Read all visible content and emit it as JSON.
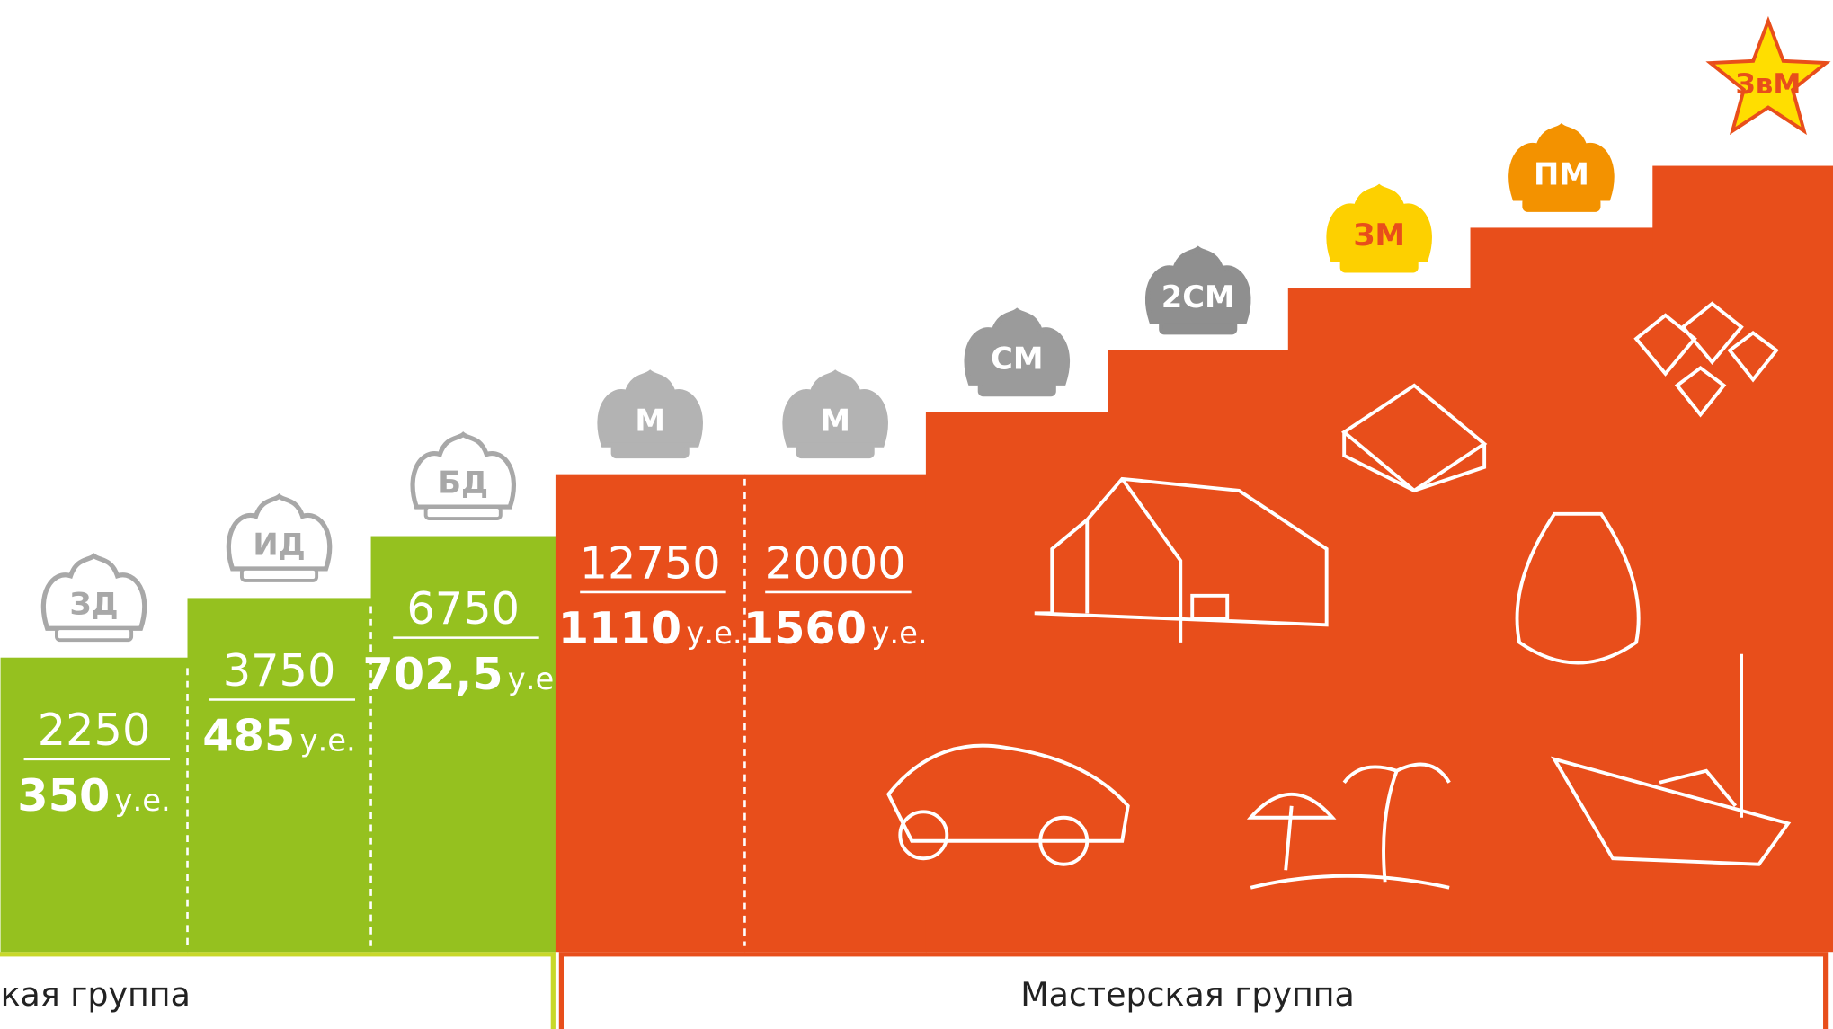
{
  "levels": [
    {
      "badge": "ЗД",
      "points": "2250",
      "amount": "350",
      "unit": "у.е."
    },
    {
      "badge": "ИД",
      "points": "3750",
      "amount": "485",
      "unit": "у.е."
    },
    {
      "badge": "БД",
      "points": "6750",
      "amount": "702,5",
      "unit": "у.е."
    },
    {
      "badge": "М",
      "points": "12750",
      "amount": "1110",
      "unit": "у.е."
    },
    {
      "badge": "М",
      "points": "20000",
      "amount": "1560",
      "unit": "у.е."
    },
    {
      "badge": "СМ"
    },
    {
      "badge": "2СМ"
    },
    {
      "badge": "ЗМ"
    },
    {
      "badge": "ПМ"
    },
    {
      "badge": "ЗвМ"
    }
  ],
  "groups": [
    "кая группа",
    "Мастерская группа"
  ]
}
